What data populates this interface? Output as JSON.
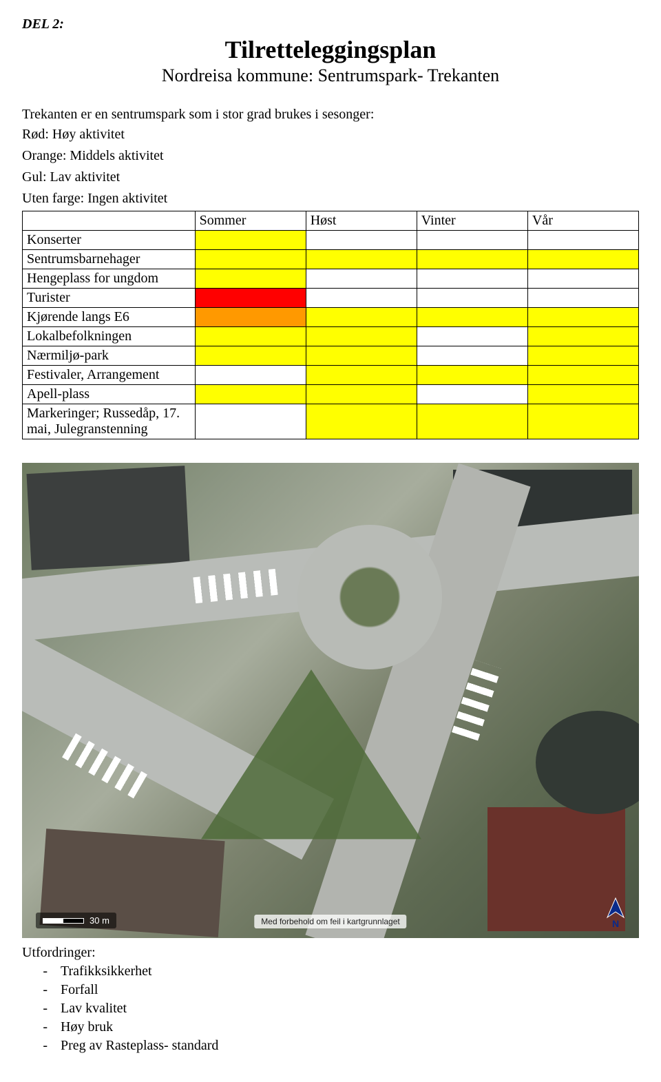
{
  "header": {
    "part_label": "DEL 2:",
    "title": "Tilretteleggingsplan",
    "subtitle": "Nordreisa kommune: Sentrumspark- Trekanten"
  },
  "intro": "Trekanten er en sentrumspark som i stor grad brukes i sesonger:",
  "legend": {
    "red": "Rød: Høy aktivitet",
    "orange": "Orange: Middels aktivitet",
    "yellow": "Gul: Lav aktivitet",
    "none": "Uten farge: Ingen aktivitet"
  },
  "colors": {
    "red": "#ff0000",
    "orange": "#ff9900",
    "yellow": "#ffff00",
    "none": "#ffffff",
    "border": "#000000",
    "text": "#000000",
    "page_bg": "#ffffff"
  },
  "table": {
    "columns": [
      "",
      "Sommer",
      "Høst",
      "Vinter",
      "Vår"
    ],
    "rows": [
      {
        "label": "Konserter",
        "cells": [
          "yellow",
          "none",
          "none",
          "none"
        ]
      },
      {
        "label": "Sentrumsbarnehager",
        "cells": [
          "yellow",
          "yellow",
          "yellow",
          "yellow"
        ]
      },
      {
        "label": "Hengeplass for ungdom",
        "cells": [
          "yellow",
          "none",
          "none",
          "none"
        ]
      },
      {
        "label": "Turister",
        "cells": [
          "red",
          "none",
          "none",
          "none"
        ]
      },
      {
        "label": "Kjørende langs E6",
        "cells": [
          "orange",
          "yellow",
          "yellow",
          "yellow"
        ]
      },
      {
        "label": "Lokalbefolkningen",
        "cells": [
          "yellow",
          "yellow",
          "none",
          "yellow"
        ]
      },
      {
        "label": "Nærmiljø-park",
        "cells": [
          "yellow",
          "yellow",
          "none",
          "yellow"
        ]
      },
      {
        "label": "Festivaler, Arrangement",
        "cells": [
          "none",
          "yellow",
          "yellow",
          "yellow"
        ]
      },
      {
        "label": "Apell-plass",
        "cells": [
          "yellow",
          "yellow",
          "none",
          "yellow"
        ]
      },
      {
        "label": "Markeringer; Russedåp, 17. mai, Julegranstenning",
        "cells": [
          "none",
          "yellow",
          "yellow",
          "yellow"
        ]
      }
    ]
  },
  "map": {
    "scale_label": "30 m",
    "attribution": "Med forbehold om feil i kartgrunnlaget",
    "north_label": "N"
  },
  "challenges": {
    "heading": "Utfordringer:",
    "items": [
      "Trafikksikkerhet",
      "Forfall",
      "Lav kvalitet",
      "Høy bruk",
      "Preg av Rasteplass- standard"
    ]
  }
}
